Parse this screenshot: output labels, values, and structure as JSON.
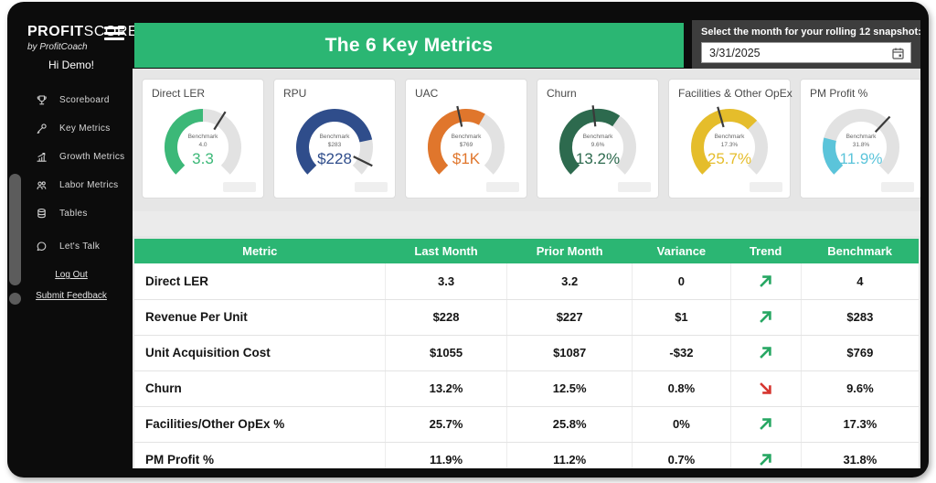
{
  "colors": {
    "accent_green": "#2bb673",
    "frame_black": "#0c0c0c",
    "content_bg": "#e6e6e6",
    "gauge_track": "#e2e2e2",
    "trend_up": "#27a763",
    "trend_down": "#d6352f"
  },
  "sidebar": {
    "logo_bold": "PROFIT",
    "logo_light": "SCORE",
    "logo_sub": "by ProfitCoach",
    "greeting": "Hi Demo!",
    "items": [
      {
        "label": "Scoreboard",
        "icon": "trophy-icon"
      },
      {
        "label": "Key Metrics",
        "icon": "wrench-icon"
      },
      {
        "label": "Growth Metrics",
        "icon": "growth-chart-icon"
      },
      {
        "label": "Labor Metrics",
        "icon": "people-icon"
      },
      {
        "label": "Tables",
        "icon": "database-icon"
      },
      {
        "label": "Let's Talk",
        "icon": "chat-bubble-icon"
      }
    ],
    "logout_label": "Log Out",
    "feedback_label": "Submit Feedback"
  },
  "header": {
    "title": "The 6 Key Metrics"
  },
  "date_picker": {
    "label": "Select the month for your rolling 12 snapshot:",
    "value": "3/31/2025"
  },
  "chart_data": [
    {
      "type": "gauge",
      "title": "Direct LER",
      "benchmark_caption": "Benchmark",
      "benchmark_label": "4.0",
      "value_label": "3.3",
      "value": 3.3,
      "benchmark": 4.0,
      "color": "#3cb878",
      "fill_fraction": 0.5,
      "benchmark_fraction": 0.62
    },
    {
      "type": "gauge",
      "title": "RPU",
      "benchmark_caption": "Benchmark",
      "benchmark_label": "$283",
      "value_label": "$228",
      "value": 228,
      "benchmark": 283,
      "color": "#2f4d8b",
      "fill_fraction": 0.79,
      "benchmark_fraction": 0.93
    },
    {
      "type": "gauge",
      "title": "UAC",
      "benchmark_caption": "Benchmark",
      "benchmark_label": "$769",
      "value_label": "$1K",
      "value": 1055,
      "benchmark": 769,
      "color": "#e0762c",
      "fill_fraction": 0.61,
      "benchmark_fraction": 0.455
    },
    {
      "type": "gauge",
      "title": "Churn",
      "benchmark_caption": "Benchmark",
      "benchmark_label": "9.6%",
      "value_label": "13.2%",
      "value": 13.2,
      "benchmark": 9.6,
      "color": "#2d6a4e",
      "fill_fraction": 0.63,
      "benchmark_fraction": 0.475
    },
    {
      "type": "gauge",
      "title": "Facilities & Other OpEx",
      "benchmark_caption": "Benchmark",
      "benchmark_label": "17.3%",
      "value_label": "25.7%",
      "value": 25.7,
      "benchmark": 17.3,
      "color": "#e5bd2b",
      "fill_fraction": 0.67,
      "benchmark_fraction": 0.44
    },
    {
      "type": "gauge",
      "title": "PM Profit %",
      "benchmark_caption": "Benchmark",
      "benchmark_label": "31.8%",
      "value_label": "11.9%",
      "value": 11.9,
      "benchmark": 31.8,
      "color": "#5bc4da",
      "fill_fraction": 0.22,
      "benchmark_fraction": 0.66
    }
  ],
  "table": {
    "headers": [
      "Metric",
      "Last Month",
      "Prior Month",
      "Variance",
      "Trend",
      "Benchmark"
    ],
    "rows": [
      {
        "metric": "Direct LER",
        "last": "3.3",
        "prior": "3.2",
        "variance": "0",
        "trend": "up",
        "benchmark": "4"
      },
      {
        "metric": "Revenue Per Unit",
        "last": "$228",
        "prior": "$227",
        "variance": "$1",
        "trend": "up",
        "benchmark": "$283"
      },
      {
        "metric": "Unit Acquisition Cost",
        "last": "$1055",
        "prior": "$1087",
        "variance": "-$32",
        "trend": "up",
        "benchmark": "$769"
      },
      {
        "metric": "Churn",
        "last": "13.2%",
        "prior": "12.5%",
        "variance": "0.8%",
        "trend": "down",
        "benchmark": "9.6%"
      },
      {
        "metric": "Facilities/Other OpEx %",
        "last": "25.7%",
        "prior": "25.8%",
        "variance": "0%",
        "trend": "up",
        "benchmark": "17.3%"
      },
      {
        "metric": "PM Profit %",
        "last": "11.9%",
        "prior": "11.2%",
        "variance": "0.7%",
        "trend": "up",
        "benchmark": "31.8%"
      }
    ]
  }
}
